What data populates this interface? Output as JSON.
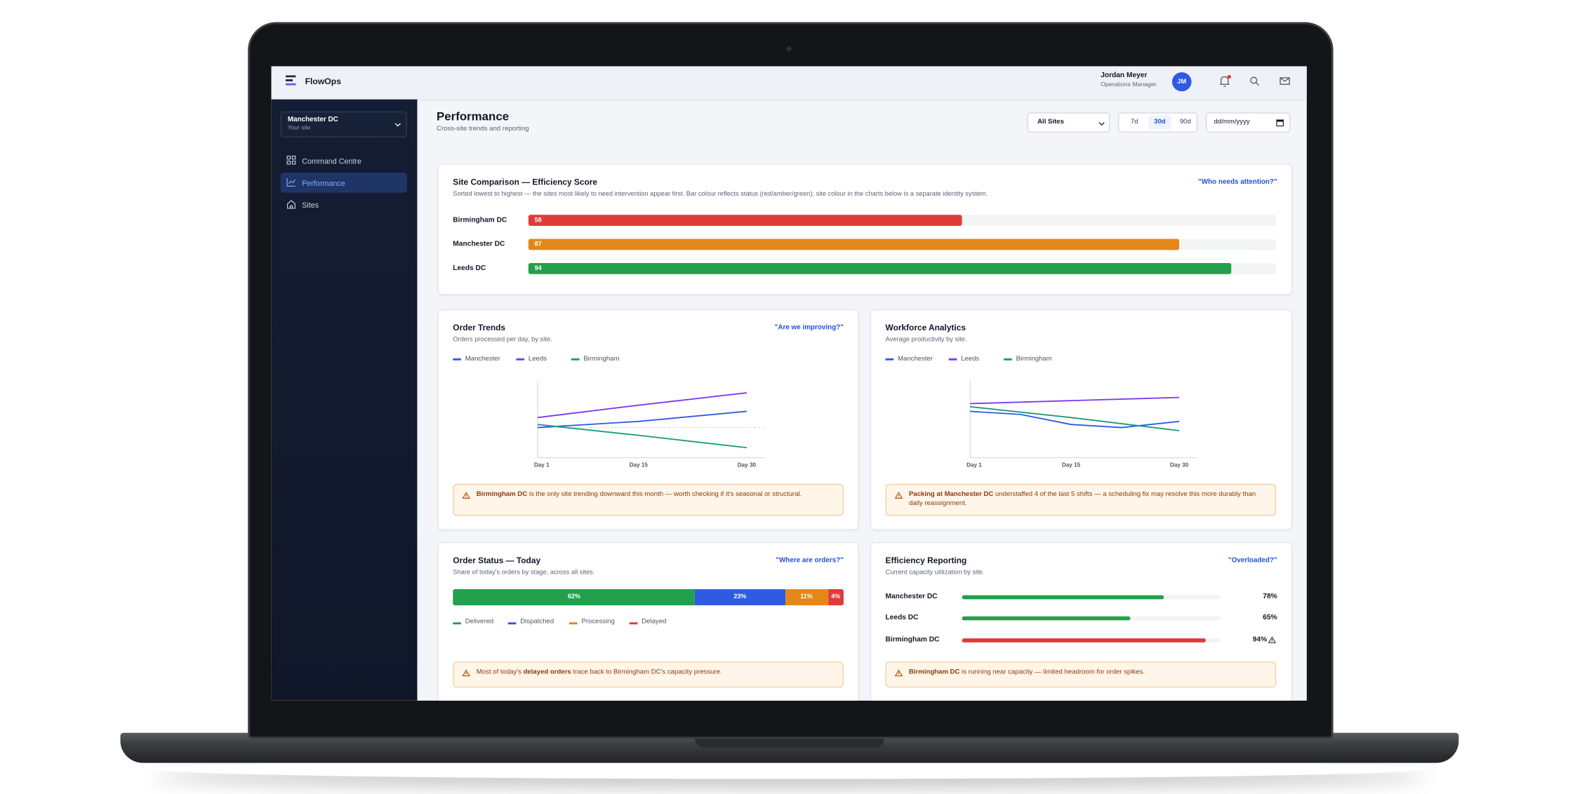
{
  "app": {
    "name": "FlowOps",
    "user": {
      "name": "Jordan Meyer",
      "role": "Operations Manager",
      "initials": "JM"
    }
  },
  "sidebar": {
    "site": {
      "name": "Manchester DC",
      "caption": "Your site"
    },
    "nav": [
      "Command Centre",
      "Performance",
      "Sites"
    ],
    "active": 1
  },
  "page": {
    "title": "Performance",
    "subtitle": "Cross-site trends and reporting",
    "filters": {
      "site": "All Sites",
      "ranges": [
        "7d",
        "30d",
        "90d"
      ],
      "active_range": 1,
      "date": "dd/mm/yyyy"
    }
  },
  "site_comparison": {
    "title": "Site Comparison — Efficiency Score",
    "description": "Sorted lowest to highest — the sites most likely to need intervention appear first. Bar colour reflects status (red/amber/green); site colour in the charts below is a separate identity system.",
    "question": "\"Who needs attention?\"",
    "xlim": [
      0,
      100
    ],
    "bars": [
      {
        "name": "Birmingham DC",
        "value": 58,
        "color": "#e03a3a"
      },
      {
        "name": "Manchester DC",
        "value": 87,
        "color": "#e5861a"
      },
      {
        "name": "Leeds DC",
        "value": 94,
        "color": "#22a04b"
      }
    ]
  },
  "order_trends": {
    "title": "Order Trends",
    "subtitle": "Orders processed per day, by site.",
    "question": "\"Are we improving?\"",
    "xlim": [
      1,
      30
    ],
    "ylim": [
      0,
      100
    ],
    "xticks": [
      {
        "value": 1,
        "label": "Day 1"
      },
      {
        "value": 15,
        "label": "Day 15"
      },
      {
        "value": 30,
        "label": "Day 30"
      }
    ],
    "reference_line": 39,
    "series": [
      {
        "name": "Manchester",
        "color": "#2f5be0",
        "x": [
          1,
          15,
          30
        ],
        "values": [
          39,
          47,
          60
        ]
      },
      {
        "name": "Leeds",
        "color": "#7c3aed",
        "x": [
          1,
          15,
          30
        ],
        "values": [
          52,
          68,
          84
        ]
      },
      {
        "name": "Birmingham",
        "color": "#1a9b78",
        "x": [
          1,
          15,
          30
        ],
        "values": [
          43,
          29,
          13
        ]
      }
    ],
    "alert": {
      "bold": "Birmingham DC",
      "text": " is the only site trending downward this month — worth checking if it's seasonal or structural."
    }
  },
  "workforce": {
    "title": "Workforce Analytics",
    "subtitle": "Average productivity by site.",
    "xlim": [
      1,
      30
    ],
    "ylim": [
      0,
      100
    ],
    "xticks": [
      {
        "value": 1,
        "label": "Day 1"
      },
      {
        "value": 15,
        "label": "Day 15"
      },
      {
        "value": 30,
        "label": "Day 30"
      }
    ],
    "series": [
      {
        "name": "Manchester",
        "color": "#2f5be0",
        "x": [
          1,
          8,
          15,
          22,
          30
        ],
        "values": [
          60,
          56,
          43,
          39,
          47
        ]
      },
      {
        "name": "Leeds",
        "color": "#7c3aed",
        "x": [
          1,
          30
        ],
        "values": [
          70,
          78
        ]
      },
      {
        "name": "Birmingham",
        "color": "#1a9b78",
        "x": [
          1,
          15,
          30
        ],
        "values": [
          66,
          52,
          35
        ]
      }
    ],
    "alert": {
      "bold": "Packing at Manchester DC",
      "text": " understaffed 4 of the last 5 shifts — a scheduling fix may resolve this more durably than daily reassignment."
    }
  },
  "order_status": {
    "title": "Order Status — Today",
    "subtitle": "Share of today's orders by stage, across all sites.",
    "question": "\"Where are orders?\"",
    "segments": [
      {
        "name": "Delivered",
        "value": 62,
        "value_label": "62%",
        "color": "#22a04b"
      },
      {
        "name": "Dispatched",
        "value": 23,
        "value_label": "23%",
        "color": "#2f5be0"
      },
      {
        "name": "Processing",
        "value": 11,
        "value_label": "11%",
        "color": "#e5861a"
      },
      {
        "name": "Delayed",
        "value": 4,
        "value_label": "4%",
        "color": "#e03a3a"
      }
    ],
    "alert": {
      "before": "Most of today's ",
      "bold": "delayed orders",
      "after": " trace back to Birmingham DC's capacity pressure."
    }
  },
  "efficiency": {
    "title": "Efficiency Reporting",
    "subtitle": "Current capacity utilization by site.",
    "question": "\"Overloaded?\"",
    "xlim": [
      0,
      100
    ],
    "rows": [
      {
        "name": "Manchester DC",
        "value": 78,
        "value_label": "78%",
        "color": "#22a04b",
        "warning": false
      },
      {
        "name": "Leeds DC",
        "value": 65,
        "value_label": "65%",
        "color": "#22a04b",
        "warning": false
      },
      {
        "name": "Birmingham DC",
        "value": 94,
        "value_label": "94%",
        "color": "#e03a3a",
        "warning": true
      }
    ],
    "alert": {
      "bold": "Birmingham DC",
      "text": " is running near capacity — limited headroom for order spikes."
    }
  }
}
